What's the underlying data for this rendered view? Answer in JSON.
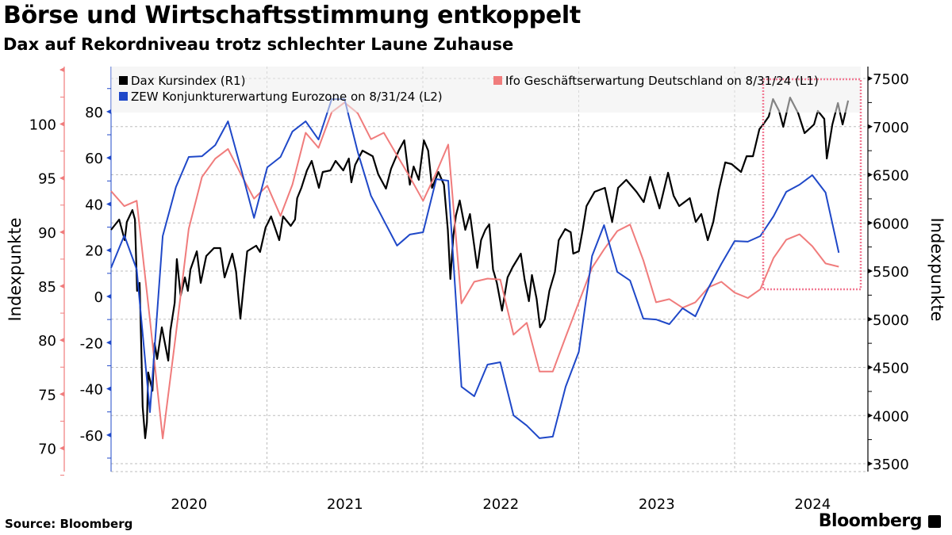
{
  "title": "Börse und Wirtschaftsstimmung entkoppelt",
  "subtitle": "Dax auf Rekordniveau trotz schlechter Laune Zuhause",
  "source": "Source: Bloomberg",
  "logo": "Bloomberg",
  "chart_data": {
    "type": "line",
    "xaxis": {
      "type": "date",
      "tick_labels": [
        "2020",
        "2021",
        "2022",
        "2023",
        "2024"
      ],
      "range": [
        "2020-01-01",
        "2024-12-31"
      ],
      "grid": true
    },
    "y_left_outer": {
      "label": "Indexpunkte",
      "series": "Ifo",
      "range": [
        67.8,
        105
      ],
      "ticks": [
        70,
        75,
        80,
        85,
        90,
        95,
        100
      ],
      "color": "#f07c7c"
    },
    "y_left_inner": {
      "series": "ZEW",
      "range": [
        -76,
        88
      ],
      "ticks": [
        -60,
        -40,
        -20,
        0,
        20,
        40,
        60,
        80
      ],
      "color": "#1f48c8"
    },
    "y_right": {
      "label": "Indexpunkte",
      "series": "Dax",
      "range": [
        3300,
        7600
      ],
      "ticks": [
        3500,
        4000,
        4500,
        5000,
        5500,
        6000,
        6500,
        7000,
        7500
      ],
      "grid": true
    },
    "legend_placement": "top",
    "series": [
      {
        "id": "dax",
        "name": "Dax Kursindex (R1)",
        "color": "#000000",
        "axis": "right",
        "points": [
          [
            "2020-01-01",
            5928
          ],
          [
            "2020-01-20",
            6035
          ],
          [
            "2020-02-02",
            5821
          ],
          [
            "2020-02-07",
            6010
          ],
          [
            "2020-02-20",
            6134
          ],
          [
            "2020-02-26",
            6035
          ],
          [
            "2020-03-02",
            5294
          ],
          [
            "2020-03-08",
            5377
          ],
          [
            "2020-03-12",
            4669
          ],
          [
            "2020-03-15",
            4093
          ],
          [
            "2020-03-21",
            3764
          ],
          [
            "2020-03-25",
            3928
          ],
          [
            "2020-03-28",
            4447
          ],
          [
            "2020-04-07",
            4257
          ],
          [
            "2020-04-12",
            4751
          ],
          [
            "2020-04-18",
            4587
          ],
          [
            "2020-04-29",
            4916
          ],
          [
            "2020-05-14",
            4570
          ],
          [
            "2020-05-19",
            4883
          ],
          [
            "2020-05-29",
            5171
          ],
          [
            "2020-06-03",
            5624
          ],
          [
            "2020-06-12",
            5245
          ],
          [
            "2020-06-22",
            5434
          ],
          [
            "2020-06-29",
            5294
          ],
          [
            "2020-07-05",
            5517
          ],
          [
            "2020-07-20",
            5706
          ],
          [
            "2020-07-29",
            5377
          ],
          [
            "2020-08-11",
            5656
          ],
          [
            "2020-08-29",
            5739
          ],
          [
            "2020-09-13",
            5739
          ],
          [
            "2020-09-23",
            5434
          ],
          [
            "2020-10-11",
            5681
          ],
          [
            "2020-10-20",
            5492
          ],
          [
            "2020-10-30",
            5006
          ],
          [
            "2020-11-08",
            5410
          ],
          [
            "2020-11-15",
            5706
          ],
          [
            "2020-12-06",
            5763
          ],
          [
            "2020-12-15",
            5698
          ],
          [
            "2020-12-28",
            5953
          ],
          [
            "2021-01-10",
            6068
          ],
          [
            "2021-01-29",
            5821
          ],
          [
            "2021-02-07",
            6068
          ],
          [
            "2021-02-25",
            5969
          ],
          [
            "2021-03-07",
            6035
          ],
          [
            "2021-03-12",
            6257
          ],
          [
            "2021-03-22",
            6364
          ],
          [
            "2021-04-04",
            6545
          ],
          [
            "2021-04-15",
            6644
          ],
          [
            "2021-05-02",
            6364
          ],
          [
            "2021-05-11",
            6529
          ],
          [
            "2021-05-29",
            6545
          ],
          [
            "2021-06-10",
            6644
          ],
          [
            "2021-06-28",
            6545
          ],
          [
            "2021-07-11",
            6669
          ],
          [
            "2021-07-17",
            6422
          ],
          [
            "2021-07-26",
            6603
          ],
          [
            "2021-08-12",
            6751
          ],
          [
            "2021-09-05",
            6693
          ],
          [
            "2021-09-18",
            6504
          ],
          [
            "2021-10-06",
            6356
          ],
          [
            "2021-10-18",
            6562
          ],
          [
            "2021-11-05",
            6751
          ],
          [
            "2021-11-18",
            6858
          ],
          [
            "2021-12-01",
            6397
          ],
          [
            "2021-12-10",
            6586
          ],
          [
            "2021-12-22",
            6447
          ],
          [
            "2022-01-03",
            6858
          ],
          [
            "2022-01-13",
            6751
          ],
          [
            "2022-01-22",
            6364
          ],
          [
            "2022-02-06",
            6529
          ],
          [
            "2022-02-19",
            6397
          ],
          [
            "2022-02-28",
            5928
          ],
          [
            "2022-03-06",
            5418
          ],
          [
            "2022-03-13",
            5870
          ],
          [
            "2022-03-19",
            6076
          ],
          [
            "2022-03-28",
            6233
          ],
          [
            "2022-04-10",
            5928
          ],
          [
            "2022-04-21",
            6093
          ],
          [
            "2022-04-29",
            5821
          ],
          [
            "2022-05-08",
            5533
          ],
          [
            "2022-05-17",
            5821
          ],
          [
            "2022-05-27",
            5928
          ],
          [
            "2022-06-05",
            5986
          ],
          [
            "2022-06-14",
            5517
          ],
          [
            "2022-06-23",
            5377
          ],
          [
            "2022-07-05",
            5089
          ],
          [
            "2022-07-18",
            5434
          ],
          [
            "2022-07-30",
            5541
          ],
          [
            "2022-08-18",
            5681
          ],
          [
            "2022-08-27",
            5410
          ],
          [
            "2022-09-06",
            5187
          ],
          [
            "2022-09-13",
            5459
          ],
          [
            "2022-09-24",
            5212
          ],
          [
            "2022-10-02",
            4916
          ],
          [
            "2022-10-13",
            4998
          ],
          [
            "2022-10-24",
            5294
          ],
          [
            "2022-11-06",
            5492
          ],
          [
            "2022-11-15",
            5821
          ],
          [
            "2022-11-30",
            5936
          ],
          [
            "2022-12-13",
            5903
          ],
          [
            "2022-12-19",
            5681
          ],
          [
            "2023-01-01",
            5706
          ],
          [
            "2023-01-10",
            5928
          ],
          [
            "2023-01-19",
            6175
          ],
          [
            "2023-02-07",
            6323
          ],
          [
            "2023-03-03",
            6364
          ],
          [
            "2023-03-20",
            6010
          ],
          [
            "2023-04-03",
            6364
          ],
          [
            "2023-04-22",
            6447
          ],
          [
            "2023-05-16",
            6323
          ],
          [
            "2023-06-02",
            6216
          ],
          [
            "2023-06-17",
            6479
          ],
          [
            "2023-07-09",
            6150
          ],
          [
            "2023-07-29",
            6521
          ],
          [
            "2023-08-11",
            6282
          ],
          [
            "2023-08-24",
            6175
          ],
          [
            "2023-09-18",
            6257
          ],
          [
            "2023-10-02",
            6010
          ],
          [
            "2023-10-15",
            6093
          ],
          [
            "2023-10-30",
            5821
          ],
          [
            "2023-11-12",
            6010
          ],
          [
            "2023-11-25",
            6340
          ],
          [
            "2023-12-10",
            6628
          ],
          [
            "2023-12-25",
            6611
          ],
          [
            "2024-01-16",
            6529
          ],
          [
            "2024-01-29",
            6693
          ],
          [
            "2024-02-13",
            6693
          ],
          [
            "2024-02-28",
            6973
          ],
          [
            "2024-03-08",
            7023
          ],
          [
            "2024-03-21",
            7105
          ],
          [
            "2024-03-31",
            7286
          ],
          [
            "2024-04-14",
            7163
          ],
          [
            "2024-04-24",
            6998
          ],
          [
            "2024-05-10",
            7302
          ],
          [
            "2024-05-29",
            7138
          ],
          [
            "2024-06-13",
            6932
          ],
          [
            "2024-07-05",
            7023
          ],
          [
            "2024-07-14",
            7163
          ],
          [
            "2024-07-29",
            7080
          ],
          [
            "2024-08-04",
            6669
          ],
          [
            "2024-08-17",
            7023
          ],
          [
            "2024-08-30",
            7245
          ],
          [
            "2024-09-10",
            7023
          ],
          [
            "2024-09-23",
            7270
          ]
        ]
      },
      {
        "id": "ifo",
        "name": "Ifo Geschäftserwartung Deutschland on 8/31/24 (L1)",
        "color": "#f07c7c",
        "axis": "left_outer",
        "months": [
          "2019-12",
          "2020-01",
          "2020-02",
          "2020-03",
          "2020-04",
          "2020-05",
          "2020-06",
          "2020-07",
          "2020-08",
          "2020-09",
          "2020-10",
          "2020-11",
          "2020-12",
          "2021-01",
          "2021-02",
          "2021-03",
          "2021-04",
          "2021-05",
          "2021-06",
          "2021-07",
          "2021-08",
          "2021-09",
          "2021-10",
          "2021-11",
          "2021-12",
          "2022-01",
          "2022-02",
          "2022-03",
          "2022-04",
          "2022-05",
          "2022-06",
          "2022-07",
          "2022-08",
          "2022-09",
          "2022-10",
          "2022-11",
          "2022-12",
          "2023-01",
          "2023-02",
          "2023-03",
          "2023-04",
          "2023-05",
          "2023-06",
          "2023-07",
          "2023-08",
          "2023-09",
          "2023-10",
          "2023-11",
          "2023-12",
          "2024-01",
          "2024-02",
          "2024-03",
          "2024-04",
          "2024-05",
          "2024-06",
          "2024-07",
          "2024-08"
        ],
        "values": [
          93.8,
          92.4,
          92.9,
          81.9,
          70.9,
          80.6,
          90.3,
          95.1,
          96.8,
          97.7,
          95.3,
          93.1,
          94.3,
          91.5,
          94.4,
          99.2,
          97.8,
          101.1,
          102.0,
          101.0,
          98.6,
          99.2,
          97.1,
          95.1,
          92.9,
          95.5,
          98.1,
          83.4,
          85.4,
          85.7,
          85.6,
          80.5,
          81.6,
          77.1,
          77.1,
          80.3,
          83.5,
          86.7,
          88.4,
          90.1,
          90.7,
          87.4,
          83.5,
          83.8,
          83.0,
          83.5,
          84.9,
          85.4,
          84.4,
          83.9,
          84.7,
          87.6,
          89.3,
          89.8,
          88.7,
          87.1,
          86.8
        ]
      },
      {
        "id": "zew",
        "name": "ZEW Konjunkturerwartung Eurozone on 8/31/24 (L2)",
        "color": "#1f48c8",
        "axis": "left_inner",
        "months": [
          "2019-12",
          "2020-01",
          "2020-02",
          "2020-03",
          "2020-04",
          "2020-05",
          "2020-06",
          "2020-07",
          "2020-08",
          "2020-09",
          "2020-10",
          "2020-11",
          "2020-12",
          "2021-01",
          "2021-02",
          "2021-03",
          "2021-04",
          "2021-05",
          "2021-06",
          "2021-07",
          "2021-08",
          "2021-09",
          "2021-10",
          "2021-11",
          "2021-12",
          "2022-01",
          "2022-02",
          "2022-03",
          "2022-04",
          "2022-05",
          "2022-06",
          "2022-07",
          "2022-08",
          "2022-09",
          "2022-10",
          "2022-11",
          "2022-12",
          "2023-01",
          "2023-02",
          "2023-03",
          "2023-04",
          "2023-05",
          "2023-06",
          "2023-07",
          "2023-08",
          "2023-09",
          "2023-10",
          "2023-11",
          "2023-12",
          "2024-01",
          "2024-02",
          "2024-03",
          "2024-04",
          "2024-05",
          "2024-06",
          "2024-07",
          "2024-08"
        ],
        "values": [
          12.4,
          26.4,
          11.7,
          -50.1,
          26.1,
          47.4,
          60.4,
          60.7,
          65.5,
          75.8,
          54.9,
          34.0,
          55.9,
          60.4,
          71.4,
          75.8,
          67.9,
          85.4,
          85.4,
          62.5,
          43.6,
          32.9,
          22.0,
          26.8,
          27.8,
          50.8,
          50.1,
          -39.1,
          -43.2,
          -29.5,
          -28.5,
          -51.5,
          -55.9,
          -61.4,
          -60.7,
          -39.1,
          -24.0,
          17.5,
          30.9,
          10.6,
          6.9,
          -9.6,
          -10.0,
          -12.0,
          -5.1,
          -8.6,
          3.8,
          14.1,
          24.0,
          23.7,
          26.1,
          34.7,
          45.3,
          48.4,
          52.5,
          45.0,
          18.9
        ]
      }
    ]
  }
}
